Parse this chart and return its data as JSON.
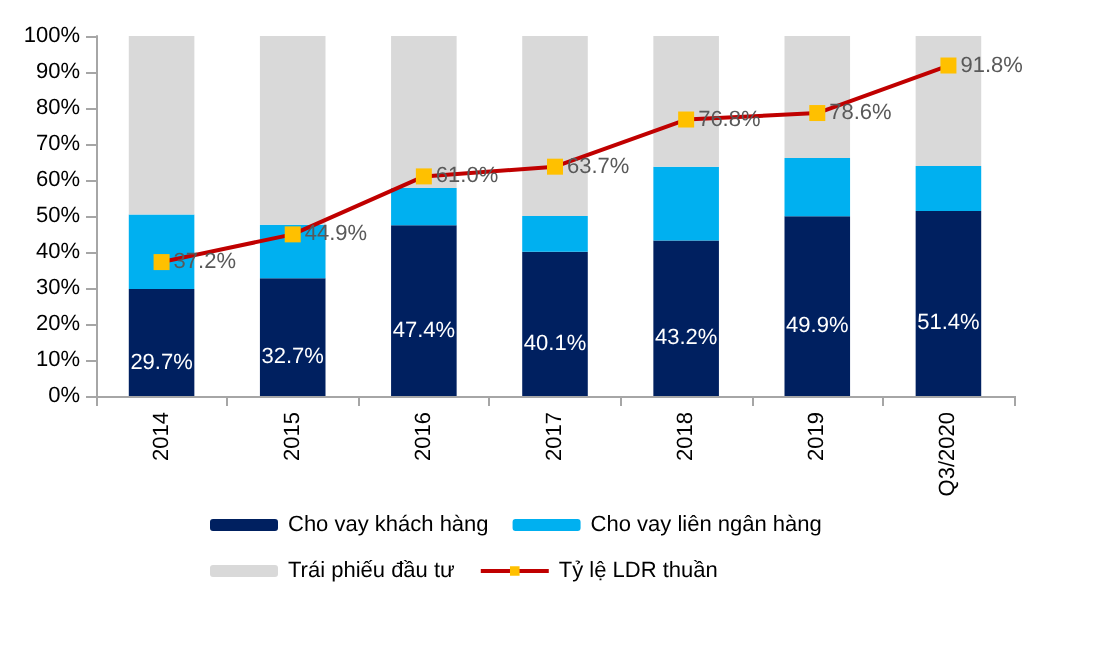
{
  "chart_data": {
    "type": "bar",
    "stacked": true,
    "categories": [
      "2014",
      "2015",
      "2016",
      "2017",
      "2018",
      "2019",
      "Q3/2020"
    ],
    "series": [
      {
        "name": "Cho vay khách hàng",
        "color": "#002060",
        "values": [
          29.7,
          32.7,
          47.4,
          40.1,
          43.2,
          49.9,
          51.4
        ],
        "value_labels": [
          "29.7%",
          "32.7%",
          "47.4%",
          "40.1%",
          "43.2%",
          "49.9%",
          "51.4%"
        ]
      },
      {
        "name": "Cho vay liên ngân hàng",
        "color": "#00b0f0",
        "values": [
          20.7,
          14.9,
          10.4,
          9.9,
          20.5,
          16.2,
          12.5
        ]
      },
      {
        "name": "Trái phiếu đầu tư",
        "color": "#d9d9d9",
        "values": [
          49.6,
          52.4,
          42.2,
          50.0,
          36.3,
          33.9,
          36.1
        ]
      },
      {
        "name": "Tỷ lệ LDR thuần",
        "type": "line",
        "color": "#c00000",
        "marker": "square",
        "values": [
          37.2,
          44.9,
          61.0,
          63.7,
          76.8,
          78.6,
          91.8
        ],
        "value_labels": [
          "37.2%",
          "44.9%",
          "61.0%",
          "63.7%",
          "76.8%",
          "78.6%",
          "91.8%"
        ]
      }
    ],
    "ylim": [
      0,
      100
    ],
    "yticks": [
      {
        "value": 0,
        "label": "0%"
      },
      {
        "value": 10,
        "label": "10%"
      },
      {
        "value": 20,
        "label": "20%"
      },
      {
        "value": 30,
        "label": "30%"
      },
      {
        "value": 40,
        "label": "40%"
      },
      {
        "value": 50,
        "label": "50%"
      },
      {
        "value": 60,
        "label": "60%"
      },
      {
        "value": 70,
        "label": "70%"
      },
      {
        "value": 80,
        "label": "80%"
      },
      {
        "value": 90,
        "label": "90%"
      },
      {
        "value": 100,
        "label": "100%"
      }
    ],
    "legend": "bottom"
  }
}
